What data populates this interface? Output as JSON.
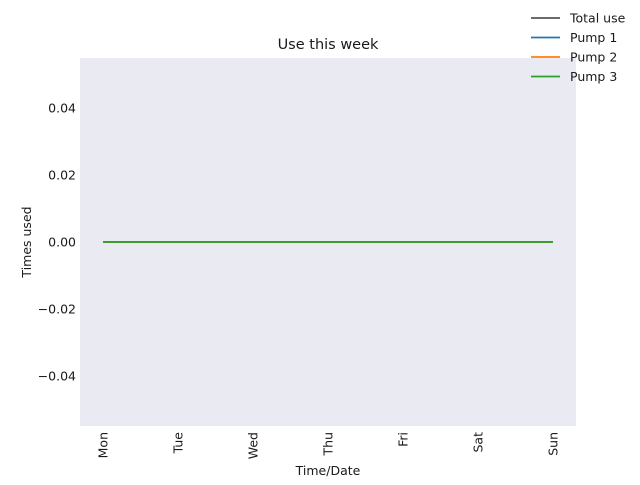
{
  "chart_data": {
    "type": "line",
    "title": "Use this week",
    "xlabel": "Time/Date",
    "ylabel": "Times used",
    "categories": [
      "Mon",
      "Tue",
      "Wed",
      "Thu",
      "Fri",
      "Sat",
      "Sun"
    ],
    "ylim": [
      -0.055,
      0.055
    ],
    "yticks": [
      -0.04,
      -0.02,
      0.0,
      0.02,
      0.04
    ],
    "ytick_labels": [
      "−0.04",
      "−0.02",
      "0.00",
      "0.02",
      "0.04"
    ],
    "grid": false,
    "legend_placement": "top-right, outside plot",
    "plot_background": "#eaeaf2",
    "series": [
      {
        "name": "Total use",
        "color": "#555555",
        "values": [
          0,
          0,
          0,
          0,
          0,
          0,
          0
        ]
      },
      {
        "name": "Pump 1",
        "color": "#1f77b4",
        "values": [
          0,
          0,
          0,
          0,
          0,
          0,
          0
        ]
      },
      {
        "name": "Pump 2",
        "color": "#ff7f0e",
        "values": [
          0,
          0,
          0,
          0,
          0,
          0,
          0
        ]
      },
      {
        "name": "Pump 3",
        "color": "#2ca02c",
        "values": [
          0,
          0,
          0,
          0,
          0,
          0,
          0
        ]
      }
    ]
  }
}
